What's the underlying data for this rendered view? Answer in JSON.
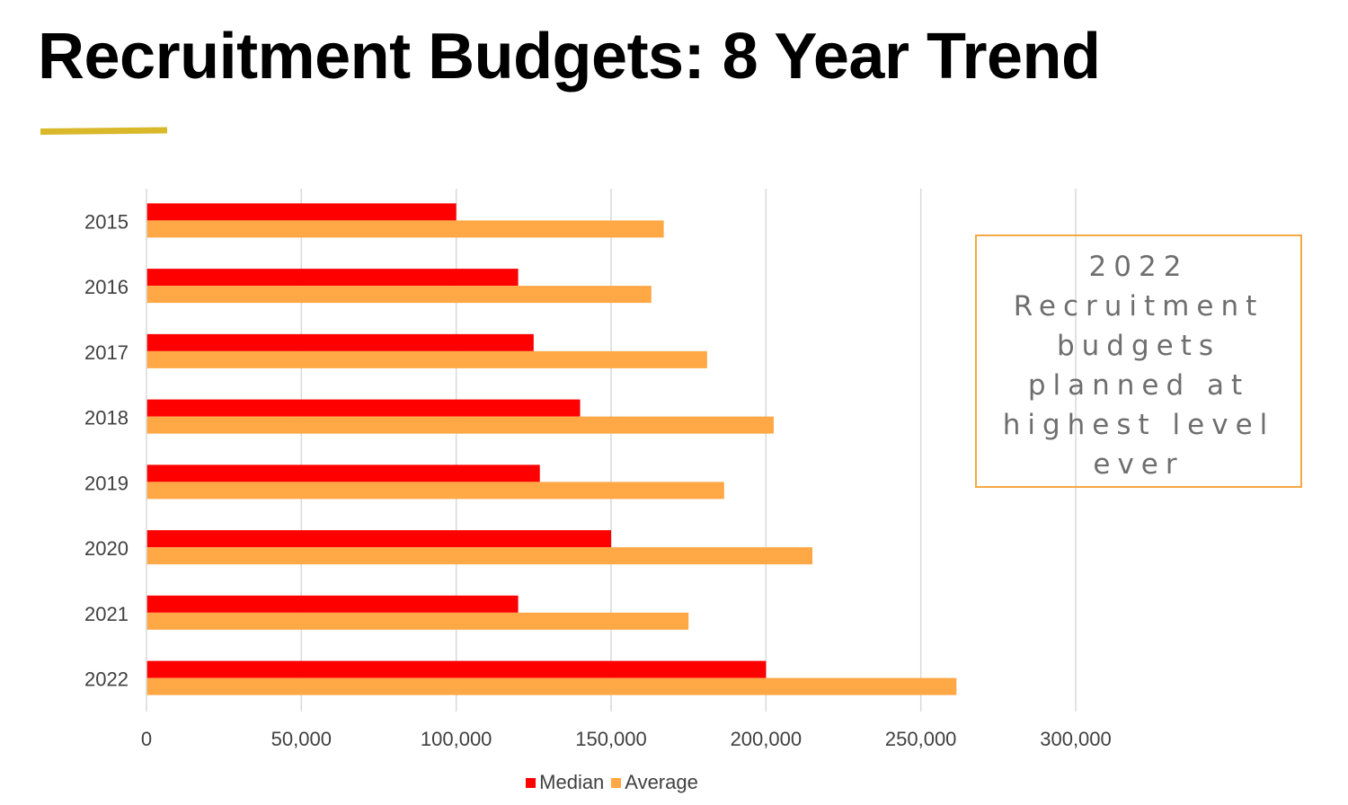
{
  "slide": {
    "title": "Recruitment Budgets: 8 Year Trend",
    "accent_color": "#d9b82a"
  },
  "callout": {
    "text": "2022 Recruitment budgets planned at highest level ever",
    "border_color": "#f5a742"
  },
  "chart_data": {
    "type": "bar",
    "orientation": "horizontal",
    "title": "",
    "xlabel": "",
    "ylabel": "",
    "categories": [
      "2015",
      "2016",
      "2017",
      "2018",
      "2019",
      "2020",
      "2021",
      "2022"
    ],
    "series": [
      {
        "name": "Median",
        "color": "#ff0000",
        "values": [
          100000,
          120000,
          125000,
          140000,
          127000,
          150000,
          120000,
          200000
        ]
      },
      {
        "name": "Average",
        "color": "#ffa845",
        "values": [
          167000,
          163000,
          181000,
          202500,
          186500,
          215000,
          175000,
          261500
        ]
      }
    ],
    "xlim": [
      0,
      300000
    ],
    "x_ticks": [
      0,
      50000,
      100000,
      150000,
      200000,
      250000,
      300000
    ],
    "x_tick_labels": [
      "0",
      "50,000",
      "100,000",
      "150,000",
      "200,000",
      "250,000",
      "300,000"
    ],
    "grid": "vertical",
    "legend_position": "bottom"
  }
}
